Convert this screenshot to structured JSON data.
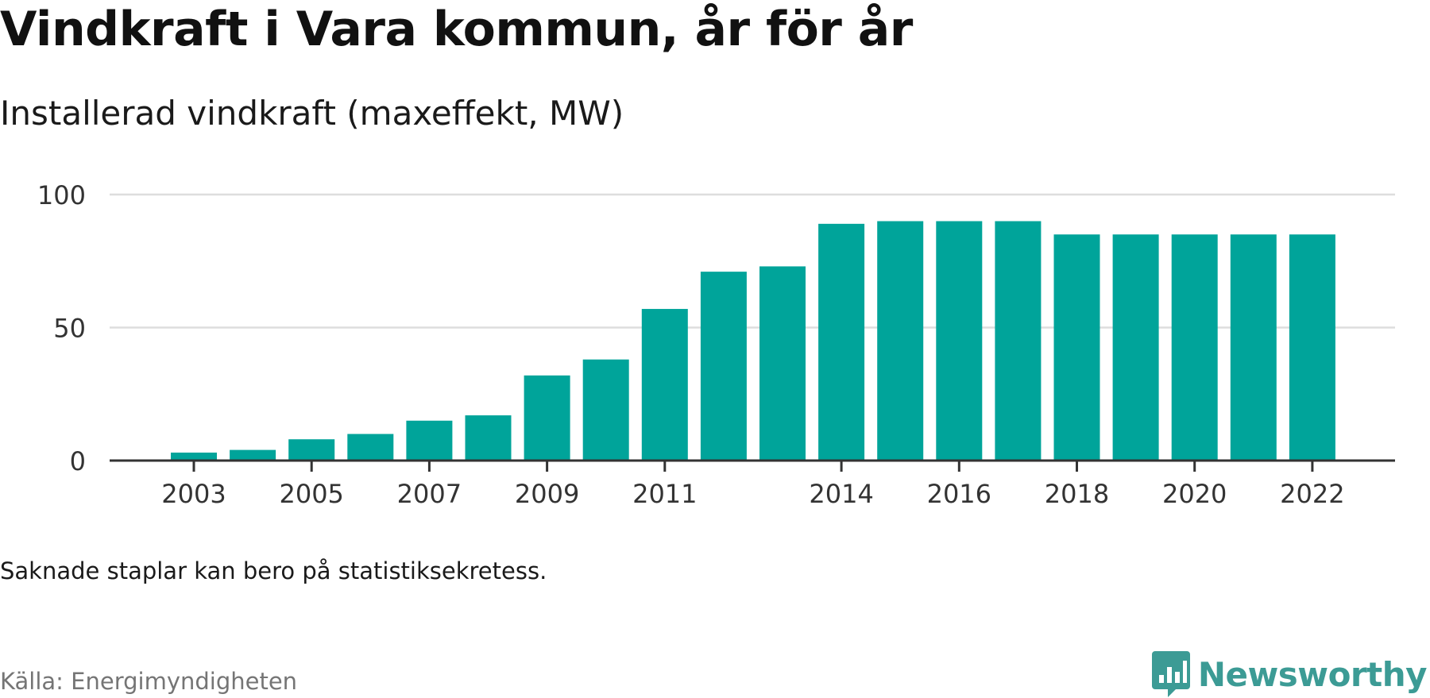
{
  "header": {
    "title": "Vindkraft i Vara kommun, år för år",
    "subtitle": "Installerad vindkraft (maxeffekt, MW)"
  },
  "footer": {
    "note": "Saknade staplar kan bero på statistiksekretess.",
    "source": "Källa: Energimyndigheten",
    "brand": "Newsworthy"
  },
  "colors": {
    "bar": "#00a49a",
    "grid": "#dddddd",
    "axis": "#333333",
    "brand": "#3c9b95"
  },
  "chart_data": {
    "type": "bar",
    "categories": [
      "2003",
      "2004",
      "2005",
      "2006",
      "2007",
      "2008",
      "2009",
      "2010",
      "2011",
      "2012",
      "2013",
      "2014",
      "2015",
      "2016",
      "2017",
      "2018",
      "2019",
      "2020",
      "2021",
      "2022"
    ],
    "values": [
      3,
      4,
      8,
      10,
      15,
      17,
      32,
      38,
      57,
      71,
      73,
      89,
      90,
      90,
      90,
      85,
      85,
      85,
      85,
      85
    ],
    "x_tick_labels": [
      "2003",
      "2005",
      "2007",
      "2009",
      "2011",
      "2014",
      "2016",
      "2018",
      "2020",
      "2022"
    ],
    "y_ticks": [
      0,
      50,
      100
    ],
    "ylim": [
      0,
      100
    ],
    "grid": true,
    "legend": false
  }
}
